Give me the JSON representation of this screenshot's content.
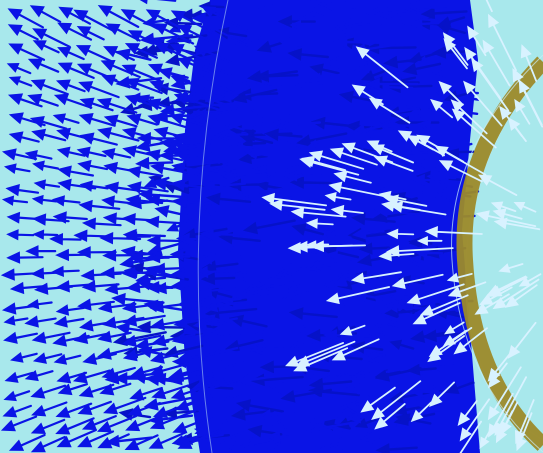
{
  "image": {
    "subject": "vector-field-visualization",
    "colors": {
      "background": "#a8e8ec",
      "arrows": "#0a14e6",
      "arrows_dark": "#0612c8",
      "highlight_arrows": "#d8f2ff",
      "ring_band": "#9c8a2a",
      "ring_outline": "#c8eef6"
    }
  }
}
